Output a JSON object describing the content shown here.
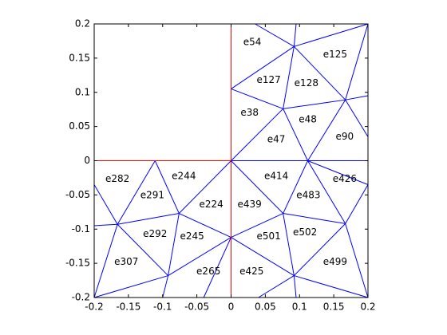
{
  "chart_data": {
    "type": "mesh",
    "xlim": [
      -0.2,
      0.2
    ],
    "ylim": [
      -0.2,
      0.2
    ],
    "xticks": [
      -0.2,
      -0.15,
      -0.1,
      -0.05,
      0,
      0.05,
      0.1,
      0.15,
      0.2
    ],
    "yticks": [
      -0.2,
      -0.15,
      -0.1,
      -0.05,
      0,
      0.05,
      0.1,
      0.15,
      0.2
    ],
    "edge_groups": [
      {
        "color": "#0000ff",
        "segments": [
          [
            0,
            0.105,
            0.092,
            0.167
          ],
          [
            0,
            0.105,
            0.076,
            0.076
          ],
          [
            0.035,
            0.2,
            0.092,
            0.167
          ],
          [
            0.095,
            0.2,
            0.092,
            0.167
          ],
          [
            0.092,
            0.167,
            0.2,
            0.2
          ],
          [
            0.092,
            0.167,
            0.167,
            0.089
          ],
          [
            0.092,
            0.167,
            0.076,
            0.076
          ],
          [
            0.076,
            0.076,
            0.167,
            0.089
          ],
          [
            0.167,
            0.089,
            0.2,
            0.2
          ],
          [
            0.167,
            0.089,
            0.2,
            0.095
          ],
          [
            0.076,
            0.076,
            0,
            0
          ],
          [
            0.076,
            0.076,
            0.112,
            0
          ],
          [
            0.167,
            0.089,
            0.112,
            0
          ],
          [
            0,
            0,
            0.112,
            0
          ],
          [
            0.112,
            0,
            0.2,
            0
          ],
          [
            0.167,
            0.089,
            0.2,
            0.035
          ],
          [
            0.112,
            0,
            0.2,
            -0.035
          ],
          [
            0.167,
            -0.092,
            0.2,
            -0.035
          ],
          [
            0,
            0,
            0.076,
            -0.077
          ],
          [
            0.112,
            0,
            0.076,
            -0.077
          ],
          [
            0.076,
            -0.077,
            0.167,
            -0.092
          ],
          [
            0.112,
            0,
            0.167,
            -0.092
          ],
          [
            0.076,
            -0.077,
            0,
            -0.112
          ],
          [
            0.076,
            -0.077,
            0.092,
            -0.168
          ],
          [
            0,
            -0.112,
            0.092,
            -0.168
          ],
          [
            0.092,
            -0.168,
            0.167,
            -0.092
          ],
          [
            0.167,
            -0.092,
            0.2,
            -0.2
          ],
          [
            0.092,
            -0.168,
            0.2,
            -0.2
          ],
          [
            0.092,
            -0.168,
            0.095,
            -0.2
          ],
          [
            0.092,
            -0.168,
            0.04,
            -0.2
          ],
          [
            0,
            0,
            -0.076,
            -0.077
          ],
          [
            -0.076,
            -0.077,
            0,
            -0.112
          ],
          [
            -0.111,
            0,
            -0.076,
            -0.077
          ],
          [
            -0.111,
            0,
            -0.166,
            -0.093
          ],
          [
            -0.166,
            -0.093,
            -0.076,
            -0.077
          ],
          [
            -0.166,
            -0.093,
            -0.092,
            -0.168
          ],
          [
            -0.092,
            -0.168,
            -0.076,
            -0.077
          ],
          [
            -0.092,
            -0.168,
            0,
            -0.112
          ],
          [
            0,
            -0.112,
            -0.04,
            -0.2
          ],
          [
            -0.092,
            -0.168,
            -0.1,
            -0.2
          ],
          [
            -0.166,
            -0.093,
            -0.2,
            -0.2
          ],
          [
            -0.092,
            -0.168,
            -0.2,
            -0.2
          ],
          [
            -0.166,
            -0.093,
            -0.2,
            -0.095
          ],
          [
            -0.166,
            -0.093,
            -0.2,
            -0.035
          ]
        ]
      },
      {
        "color": "#ff0000",
        "segments": [
          [
            0,
            0.2,
            0,
            0
          ],
          [
            0,
            0,
            0,
            -0.2
          ],
          [
            -0.2,
            0,
            0,
            0
          ]
        ]
      }
    ],
    "elements": [
      {
        "label": "e54",
        "x": 0.031,
        "y": 0.173
      },
      {
        "label": "e125",
        "x": 0.152,
        "y": 0.155
      },
      {
        "label": "e127",
        "x": 0.055,
        "y": 0.118
      },
      {
        "label": "e128",
        "x": 0.11,
        "y": 0.113
      },
      {
        "label": "e38",
        "x": 0.027,
        "y": 0.07
      },
      {
        "label": "e48",
        "x": 0.112,
        "y": 0.06
      },
      {
        "label": "e47",
        "x": 0.066,
        "y": 0.031
      },
      {
        "label": "e90",
        "x": 0.166,
        "y": 0.035
      },
      {
        "label": "e282",
        "x": -0.166,
        "y": -0.027
      },
      {
        "label": "e244",
        "x": -0.069,
        "y": -0.023
      },
      {
        "label": "e291",
        "x": -0.115,
        "y": -0.051
      },
      {
        "label": "e224",
        "x": -0.029,
        "y": -0.064
      },
      {
        "label": "e414",
        "x": 0.066,
        "y": -0.023
      },
      {
        "label": "e426",
        "x": 0.166,
        "y": -0.027
      },
      {
        "label": "e483",
        "x": 0.113,
        "y": -0.051
      },
      {
        "label": "e439",
        "x": 0.027,
        "y": -0.064
      },
      {
        "label": "e292",
        "x": -0.111,
        "y": -0.107
      },
      {
        "label": "e245",
        "x": -0.057,
        "y": -0.111
      },
      {
        "label": "e501",
        "x": 0.055,
        "y": -0.111
      },
      {
        "label": "e502",
        "x": 0.108,
        "y": -0.105
      },
      {
        "label": "e307",
        "x": -0.153,
        "y": -0.148
      },
      {
        "label": "e265",
        "x": -0.033,
        "y": -0.162
      },
      {
        "label": "e425",
        "x": 0.03,
        "y": -0.162
      },
      {
        "label": "e499",
        "x": 0.152,
        "y": -0.148
      }
    ]
  }
}
